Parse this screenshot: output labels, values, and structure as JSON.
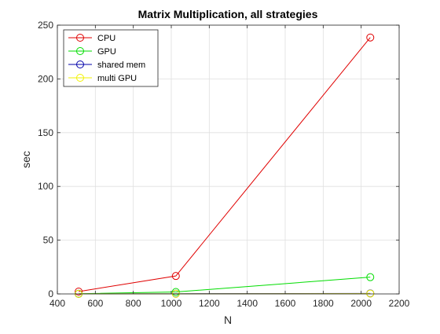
{
  "chart_data": {
    "type": "line",
    "title": "Matrix Multiplication, all strategies",
    "xlabel": "N",
    "ylabel": "sec",
    "xlim": [
      400,
      2200
    ],
    "ylim": [
      0,
      250
    ],
    "xticks": [
      400,
      600,
      800,
      1000,
      1200,
      1400,
      1600,
      1800,
      2000,
      2200
    ],
    "yticks": [
      0,
      50,
      100,
      150,
      200,
      250
    ],
    "grid": true,
    "legend_position": "top-left",
    "marker": "circle",
    "x": [
      512,
      1024,
      2048
    ],
    "series": [
      {
        "name": "CPU",
        "color": "#e00000",
        "values": [
          2.2,
          16.7,
          238.5
        ]
      },
      {
        "name": "GPU",
        "color": "#00dd00",
        "values": [
          0.15,
          1.8,
          15.6
        ]
      },
      {
        "name": "shared mem",
        "color": "#0000aa",
        "values": [
          0.05,
          0.2,
          0.5
        ]
      },
      {
        "name": "multi GPU",
        "color": "#f2f200",
        "values": [
          0.05,
          0.1,
          0.3
        ]
      }
    ]
  }
}
